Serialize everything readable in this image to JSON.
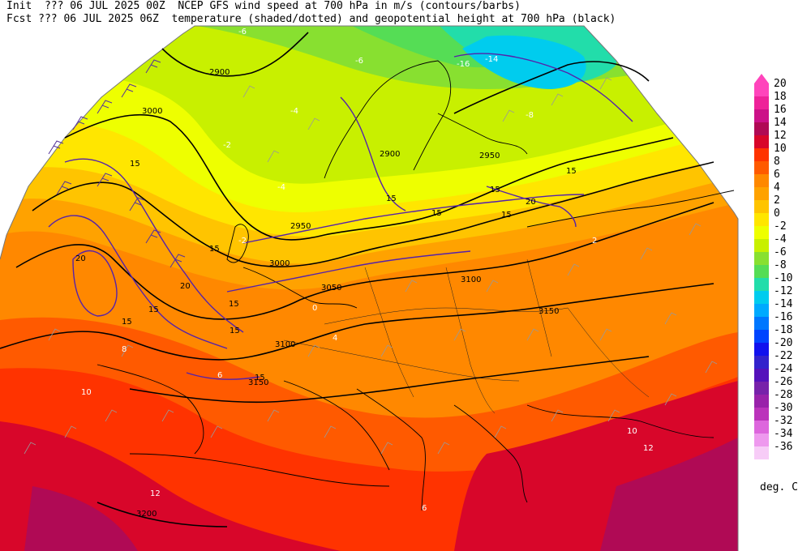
{
  "header": {
    "line1": "Init  ??? 06 JUL 2025 00Z  NCEP GFS wind speed at 700 hPa in m/s (contours/barbs)",
    "line2": "Fcst ??? 06 JUL 2025 06Z  temperature (shaded/dotted) and geopotential height at 700 hPa (black)"
  },
  "legend": {
    "units": "deg. C",
    "levels": [
      {
        "label": "20",
        "color": "#ff44bb"
      },
      {
        "label": "18",
        "color": "#ee2299"
      },
      {
        "label": "16",
        "color": "#cc1188"
      },
      {
        "label": "14",
        "color": "#b00a55"
      },
      {
        "label": "12",
        "color": "#d8062a"
      },
      {
        "label": "10",
        "color": "#ff3300"
      },
      {
        "label": "8",
        "color": "#ff5a00"
      },
      {
        "label": "6",
        "color": "#ff8800"
      },
      {
        "label": "4",
        "color": "#ffa200"
      },
      {
        "label": "2",
        "color": "#ffc400"
      },
      {
        "label": "0",
        "color": "#ffe600"
      },
      {
        "label": "-2",
        "color": "#eeff00"
      },
      {
        "label": "-4",
        "color": "#c8f000"
      },
      {
        "label": "-6",
        "color": "#88e030"
      },
      {
        "label": "-8",
        "color": "#55dd55"
      },
      {
        "label": "-10",
        "color": "#22ddaa"
      },
      {
        "label": "-12",
        "color": "#00ccee"
      },
      {
        "label": "-14",
        "color": "#00aaff"
      },
      {
        "label": "-16",
        "color": "#0077ff"
      },
      {
        "label": "-18",
        "color": "#0044ff"
      },
      {
        "label": "-20",
        "color": "#1111ee"
      },
      {
        "label": "-22",
        "color": "#3322cc"
      },
      {
        "label": "-24",
        "color": "#5511bb"
      },
      {
        "label": "-26",
        "color": "#7722aa"
      },
      {
        "label": "-28",
        "color": "#9922aa"
      },
      {
        "label": "-30",
        "color": "#bb33bb"
      },
      {
        "label": "-32",
        "color": "#dd66dd"
      },
      {
        "label": "-34",
        "color": "#ee99ee"
      },
      {
        "label": "-36",
        "color": "#f7ccf7"
      }
    ]
  },
  "map_labels": {
    "geopotential": [
      "2900",
      "3000",
      "2900",
      "2950",
      "2950",
      "3000",
      "3050",
      "3100",
      "3100",
      "3150",
      "3150",
      "3200"
    ],
    "wind_speed": [
      "15",
      "20",
      "15",
      "15",
      "15",
      "20",
      "15",
      "15",
      "15",
      "15",
      "15",
      "20",
      "15",
      "15",
      "15"
    ],
    "temperature": [
      "-6",
      "-6",
      "-4",
      "-2",
      "-4",
      "-8",
      "-16",
      "-14",
      "-2",
      "0",
      "2",
      "4",
      "6",
      "8",
      "10",
      "12",
      "6",
      "10",
      "12"
    ]
  }
}
